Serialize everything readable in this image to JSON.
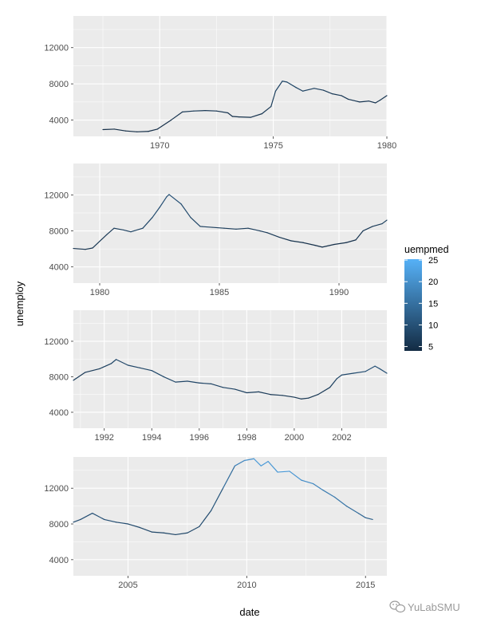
{
  "chart_data": {
    "type": "line",
    "xlabel": "date",
    "ylabel": "unemploy",
    "legend": {
      "title": "uempmed",
      "ticks": [
        5,
        10,
        15,
        20,
        25
      ],
      "range": [
        4,
        25.2
      ],
      "low_color": "#132B43",
      "high_color": "#56B1F7",
      "placement": "right"
    },
    "grid": true,
    "panel_background": "#EBEBEB",
    "ylim": [
      2200,
      15500
    ],
    "yticks": [
      4000,
      8000,
      12000
    ],
    "panels": [
      {
        "xlim": [
          1966.2,
          1980.0
        ],
        "xticks": [
          {
            "value": 1970,
            "label": "1970"
          },
          {
            "value": 1975,
            "label": "1975"
          },
          {
            "value": 1980,
            "label": "1980"
          }
        ],
        "series": [
          [
            1967.5,
            2950,
            4.5
          ],
          [
            1968.0,
            3000,
            4.5
          ],
          [
            1968.5,
            2800,
            4.4
          ],
          [
            1969.0,
            2700,
            4.3
          ],
          [
            1969.5,
            2750,
            4.4
          ],
          [
            1969.9,
            3000,
            4.6
          ],
          [
            1970.5,
            4000,
            5.0
          ],
          [
            1971.0,
            4900,
            6.0
          ],
          [
            1971.5,
            5000,
            6.5
          ],
          [
            1972.0,
            5050,
            6.2
          ],
          [
            1972.5,
            5000,
            6.0
          ],
          [
            1973.0,
            4800,
            5.5
          ],
          [
            1973.2,
            4400,
            5.0
          ],
          [
            1973.5,
            4350,
            5.0
          ],
          [
            1974.0,
            4300,
            5.2
          ],
          [
            1974.5,
            4700,
            5.8
          ],
          [
            1974.9,
            5500,
            6.5
          ],
          [
            1975.1,
            7200,
            7.5
          ],
          [
            1975.4,
            8300,
            8.5
          ],
          [
            1975.6,
            8200,
            8.5
          ],
          [
            1976.0,
            7600,
            8.0
          ],
          [
            1976.3,
            7200,
            8.0
          ],
          [
            1976.8,
            7500,
            7.8
          ],
          [
            1977.2,
            7300,
            7.0
          ],
          [
            1977.6,
            6900,
            6.5
          ],
          [
            1978.0,
            6700,
            6.2
          ],
          [
            1978.3,
            6300,
            6.0
          ],
          [
            1978.8,
            6000,
            5.8
          ],
          [
            1979.2,
            6100,
            5.5
          ],
          [
            1979.5,
            5900,
            5.5
          ],
          [
            1979.7,
            6200,
            5.6
          ],
          [
            1980.0,
            6700,
            6.0
          ]
        ]
      },
      {
        "xlim": [
          1978.9,
          1992.0
        ],
        "xticks": [
          {
            "value": 1980,
            "label": "1980"
          },
          {
            "value": 1985,
            "label": "1985"
          },
          {
            "value": 1990,
            "label": "1990"
          }
        ],
        "series": [
          [
            1978.9,
            6050,
            5.5
          ],
          [
            1979.4,
            5950,
            5.5
          ],
          [
            1979.7,
            6100,
            5.6
          ],
          [
            1980.3,
            7600,
            6.5
          ],
          [
            1980.6,
            8300,
            7.0
          ],
          [
            1981.0,
            8100,
            7.0
          ],
          [
            1981.3,
            7900,
            7.5
          ],
          [
            1981.8,
            8300,
            8.0
          ],
          [
            1982.2,
            9500,
            8.8
          ],
          [
            1982.5,
            10600,
            9.5
          ],
          [
            1982.8,
            11800,
            10.0
          ],
          [
            1982.9,
            12050,
            10.2
          ],
          [
            1983.4,
            11000,
            9.5
          ],
          [
            1983.8,
            9500,
            8.7
          ],
          [
            1984.2,
            8500,
            7.5
          ],
          [
            1984.7,
            8400,
            7.0
          ],
          [
            1985.2,
            8300,
            6.8
          ],
          [
            1985.7,
            8200,
            6.8
          ],
          [
            1986.2,
            8300,
            6.8
          ],
          [
            1986.7,
            8000,
            6.9
          ],
          [
            1987.0,
            7800,
            6.6
          ],
          [
            1987.5,
            7300,
            6.0
          ],
          [
            1988.0,
            6900,
            5.5
          ],
          [
            1988.5,
            6700,
            5.2
          ],
          [
            1989.0,
            6400,
            4.8
          ],
          [
            1989.3,
            6200,
            4.6
          ],
          [
            1989.8,
            6500,
            4.7
          ],
          [
            1990.3,
            6700,
            5.0
          ],
          [
            1990.7,
            7000,
            5.3
          ],
          [
            1991.0,
            8000,
            6.0
          ],
          [
            1991.4,
            8500,
            6.5
          ],
          [
            1991.8,
            8800,
            7.0
          ],
          [
            1992.0,
            9200,
            7.5
          ]
        ]
      },
      {
        "xlim": [
          1990.7,
          2003.9
        ],
        "xticks": [
          {
            "value": 1992,
            "label": "1992"
          },
          {
            "value": 1994,
            "label": "1994"
          },
          {
            "value": 1996,
            "label": "1996"
          },
          {
            "value": 1998,
            "label": "1998"
          },
          {
            "value": 2000,
            "label": "2000"
          },
          {
            "value": 2002,
            "label": "2002"
          }
        ],
        "series": [
          [
            1990.7,
            7600,
            6.0
          ],
          [
            1991.2,
            8500,
            6.5
          ],
          [
            1991.8,
            8900,
            7.0
          ],
          [
            1992.3,
            9500,
            8.0
          ],
          [
            1992.5,
            9950,
            8.5
          ],
          [
            1993.0,
            9300,
            8.5
          ],
          [
            1993.5,
            9000,
            8.3
          ],
          [
            1994.0,
            8700,
            8.5
          ],
          [
            1994.5,
            8000,
            9.0
          ],
          [
            1995.0,
            7400,
            8.0
          ],
          [
            1995.5,
            7500,
            8.3
          ],
          [
            1996.0,
            7300,
            8.3
          ],
          [
            1996.5,
            7200,
            8.0
          ],
          [
            1997.0,
            6800,
            8.0
          ],
          [
            1997.5,
            6600,
            8.0
          ],
          [
            1998.0,
            6200,
            7.0
          ],
          [
            1998.5,
            6300,
            6.8
          ],
          [
            1999.0,
            6000,
            6.4
          ],
          [
            1999.5,
            5900,
            6.0
          ],
          [
            2000.0,
            5700,
            6.0
          ],
          [
            2000.3,
            5500,
            6.0
          ],
          [
            2000.6,
            5600,
            5.8
          ],
          [
            2001.0,
            6000,
            6.0
          ],
          [
            2001.5,
            6800,
            7.0
          ],
          [
            2001.8,
            7800,
            8.0
          ],
          [
            2002.0,
            8200,
            8.5
          ],
          [
            2002.5,
            8400,
            9.0
          ],
          [
            2003.0,
            8600,
            10.0
          ],
          [
            2003.4,
            9200,
            10.0
          ],
          [
            2003.6,
            8900,
            10.0
          ],
          [
            2003.9,
            8400,
            9.5
          ]
        ]
      },
      {
        "xlim": [
          2002.7,
          2015.9
        ],
        "xticks": [
          {
            "value": 2005,
            "label": "2005"
          },
          {
            "value": 2010,
            "label": "2010"
          },
          {
            "value": 2015,
            "label": "2015"
          }
        ],
        "series": [
          [
            2002.7,
            8200,
            9.0
          ],
          [
            2003.0,
            8500,
            9.5
          ],
          [
            2003.5,
            9200,
            10.0
          ],
          [
            2004.0,
            8500,
            10.0
          ],
          [
            2004.5,
            8200,
            9.5
          ],
          [
            2005.0,
            8000,
            9.0
          ],
          [
            2005.5,
            7600,
            9.0
          ],
          [
            2006.0,
            7100,
            8.5
          ],
          [
            2006.5,
            7000,
            8.5
          ],
          [
            2007.0,
            6800,
            8.3
          ],
          [
            2007.5,
            7000,
            8.5
          ],
          [
            2008.0,
            7700,
            9.0
          ],
          [
            2008.5,
            9500,
            9.5
          ],
          [
            2009.0,
            12000,
            12.0
          ],
          [
            2009.5,
            14500,
            17.0
          ],
          [
            2009.9,
            15100,
            19.0
          ],
          [
            2010.3,
            15300,
            21.0
          ],
          [
            2010.6,
            14500,
            22.0
          ],
          [
            2010.9,
            15000,
            21.0
          ],
          [
            2011.3,
            13800,
            21.5
          ],
          [
            2011.8,
            13900,
            22.0
          ],
          [
            2012.3,
            12900,
            20.0
          ],
          [
            2012.8,
            12500,
            19.0
          ],
          [
            2013.2,
            11800,
            17.5
          ],
          [
            2013.7,
            11000,
            16.5
          ],
          [
            2014.2,
            10000,
            15.5
          ],
          [
            2014.7,
            9200,
            14.0
          ],
          [
            2015.0,
            8700,
            13.0
          ],
          [
            2015.3,
            8500,
            12.0
          ]
        ]
      }
    ]
  },
  "watermark": {
    "text": "YuLabSMU"
  }
}
